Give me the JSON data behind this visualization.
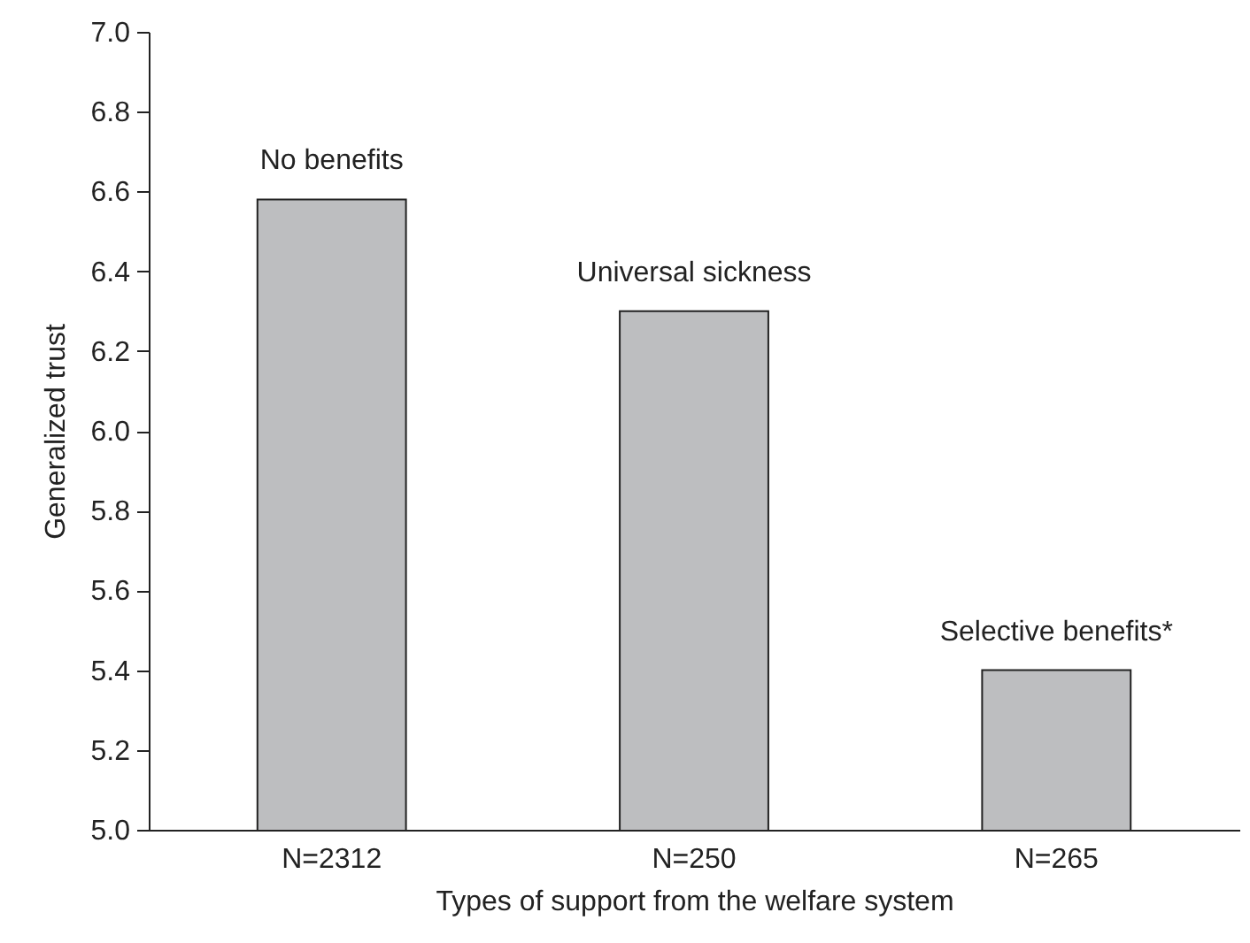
{
  "chart_data": {
    "type": "bar",
    "xlabel": "Types of support from the welfare system",
    "ylabel": "Generalized trust",
    "categories": [
      "N=2312",
      "N=250",
      "N=265"
    ],
    "values": [
      6.58,
      6.3,
      5.4
    ],
    "color": "#bdbec0",
    "ylim": [
      5.0,
      7.0
    ],
    "yticks": [
      {
        "value": 5.0,
        "label": "5.0"
      },
      {
        "value": 5.2,
        "label": "5.2"
      },
      {
        "value": 5.4,
        "label": "5.4"
      },
      {
        "value": 5.6,
        "label": "5.6"
      },
      {
        "value": 5.8,
        "label": "5.8"
      },
      {
        "value": 6.0,
        "label": "6.0"
      },
      {
        "value": 6.2,
        "label": "6.2"
      },
      {
        "value": 6.4,
        "label": "6.4"
      },
      {
        "value": 6.6,
        "label": "6.6"
      },
      {
        "value": 6.8,
        "label": "6.8"
      },
      {
        "value": 7.0,
        "label": "7.0"
      }
    ],
    "annotations": [
      {
        "text": "No benefits",
        "x": "N=2312",
        "y": 6.58
      },
      {
        "text": "Universal sickness",
        "x": "N=250",
        "y": 6.3
      },
      {
        "text": "Selective benefits*",
        "x": "N=265",
        "y": 5.4
      }
    ],
    "grid": false
  }
}
